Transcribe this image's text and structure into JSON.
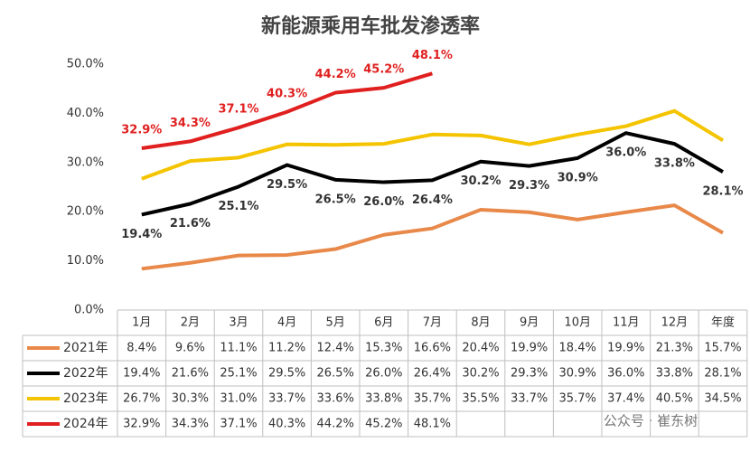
{
  "chart_data": {
    "type": "line",
    "title": "新能源乘用车批发渗透率",
    "categories": [
      "1月",
      "2月",
      "3月",
      "4月",
      "5月",
      "6月",
      "7月",
      "8月",
      "9月",
      "10月",
      "11月",
      "12月",
      "年度"
    ],
    "series": [
      {
        "name": "2021年",
        "color": "#e8894a",
        "data_labels": false,
        "values": [
          8.4,
          9.6,
          11.1,
          11.2,
          12.4,
          15.3,
          16.6,
          20.4,
          19.9,
          18.4,
          19.9,
          21.3,
          15.7
        ],
        "value_labels": [
          "8.4%",
          "9.6%",
          "11.1%",
          "11.2%",
          "12.4%",
          "15.3%",
          "16.6%",
          "20.4%",
          "19.9%",
          "18.4%",
          "19.9%",
          "21.3%",
          "15.7%"
        ]
      },
      {
        "name": "2022年",
        "color": "#000000",
        "data_labels": true,
        "values": [
          19.4,
          21.6,
          25.1,
          29.5,
          26.5,
          26.0,
          26.4,
          30.2,
          29.3,
          30.9,
          36.0,
          33.8,
          28.1
        ],
        "value_labels": [
          "19.4%",
          "21.6%",
          "25.1%",
          "29.5%",
          "26.5%",
          "26.0%",
          "26.4%",
          "30.2%",
          "29.3%",
          "30.9%",
          "36.0%",
          "33.8%",
          "28.1%"
        ]
      },
      {
        "name": "2023年",
        "color": "#f5c400",
        "data_labels": false,
        "values": [
          26.7,
          30.3,
          31.0,
          33.7,
          33.6,
          33.8,
          35.7,
          35.5,
          33.7,
          35.7,
          37.4,
          40.5,
          34.5
        ],
        "value_labels": [
          "26.7%",
          "30.3%",
          "31.0%",
          "33.7%",
          "33.6%",
          "33.8%",
          "35.7%",
          "35.5%",
          "33.7%",
          "35.7%",
          "37.4%",
          "40.5%",
          "34.5%"
        ]
      },
      {
        "name": "2024年",
        "color": "#e01f1f",
        "data_labels": true,
        "values": [
          32.9,
          34.3,
          37.1,
          40.3,
          44.2,
          45.2,
          48.1,
          null,
          null,
          null,
          null,
          null,
          null
        ],
        "value_labels": [
          "32.9%",
          "34.3%",
          "37.1%",
          "40.3%",
          "44.2%",
          "45.2%",
          "48.1%",
          null,
          null,
          null,
          null,
          null,
          null
        ]
      }
    ],
    "ylim": [
      0,
      50
    ],
    "yticks": [
      {
        "value": 0,
        "label": "0.0%"
      },
      {
        "value": 10,
        "label": "10.0%"
      },
      {
        "value": 20,
        "label": "20.0%"
      },
      {
        "value": 30,
        "label": "30.0%"
      },
      {
        "value": 40,
        "label": "40.0%"
      },
      {
        "value": 50,
        "label": "50.0%"
      }
    ],
    "watermark": "公众号 · 崔东树"
  }
}
